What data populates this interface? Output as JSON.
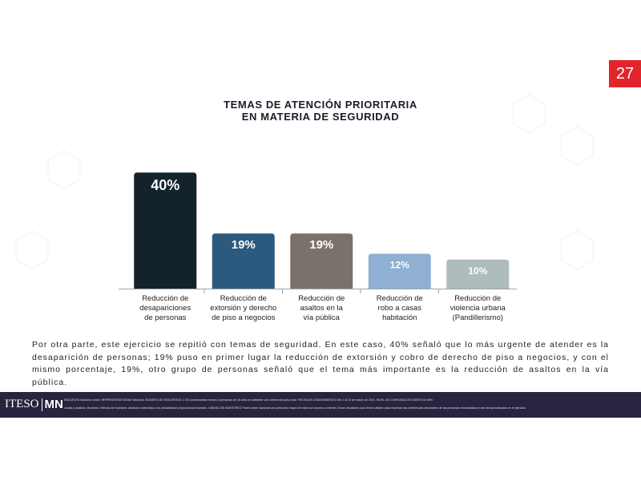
{
  "page_number": "27",
  "chart_data": {
    "type": "bar",
    "title": "TEMAS DE ATENCIÓN PRIORITARIA\nEN MATERIA DE SEGURIDAD",
    "categories": [
      "Reducción de\ndesapariciones\nde personas",
      "Reducción de\nextorsión y derecho\nde piso a negocios",
      "Reducción de\nasaltos en la\nvía pública",
      "Reducción de\nrobo a casas habitación",
      "Reducción de\nviolencia urbana\n(Pandillerismo)"
    ],
    "values": [
      40,
      19,
      19,
      12,
      10
    ],
    "value_labels": [
      "40%",
      "19%",
      "19%",
      "12%",
      "10%"
    ],
    "colors": [
      "#13222b",
      "#2b5a7e",
      "#7a716b",
      "#8fb0d2",
      "#aebcbe"
    ]
  },
  "paragraph": "Por otra parte, este ejercicio se repitió con temas de seguridad. En este caso, 40% señaló que lo más urgente de atender es la desaparición de personas; 19% puso en primer lugar la reducción de extorsión y cobro de derecho de piso a negocios, y con el mismo porcentaje, 19%, otro grupo de personas señaló que el tema más importante es la reducción de asaltos en la vía pública.",
  "footer": {
    "logo_left": "ITESO",
    "logo_right": "MN",
    "lines": [
      "ENCUESTA Nacional online. REPRESENTATIVIDAD Nacional. NÚMERO DE ENCUESTAS 1,734 cuestionarios hechos a personas de 18 años en adelante con credencial para votar. FECHA DE LEVANTAMIENTO del 1 al 15 de marzo de 2021. NIVEL DE CONFIANZA ESTADÍSTICA 95%",
      "cuotas y análisis. Muestreo: Método de muestreo: Aleatorio sistemático con probabilidad proporcional al tamaño. UNIDAD DE MUESTREO Panel online nacional con población mayor de edad con acceso a internet. Estos resultados solo tienen validez para expresar las preferencias electorales de las personas encuestadas en las fechas indicadas en el ejercicio."
    ]
  }
}
